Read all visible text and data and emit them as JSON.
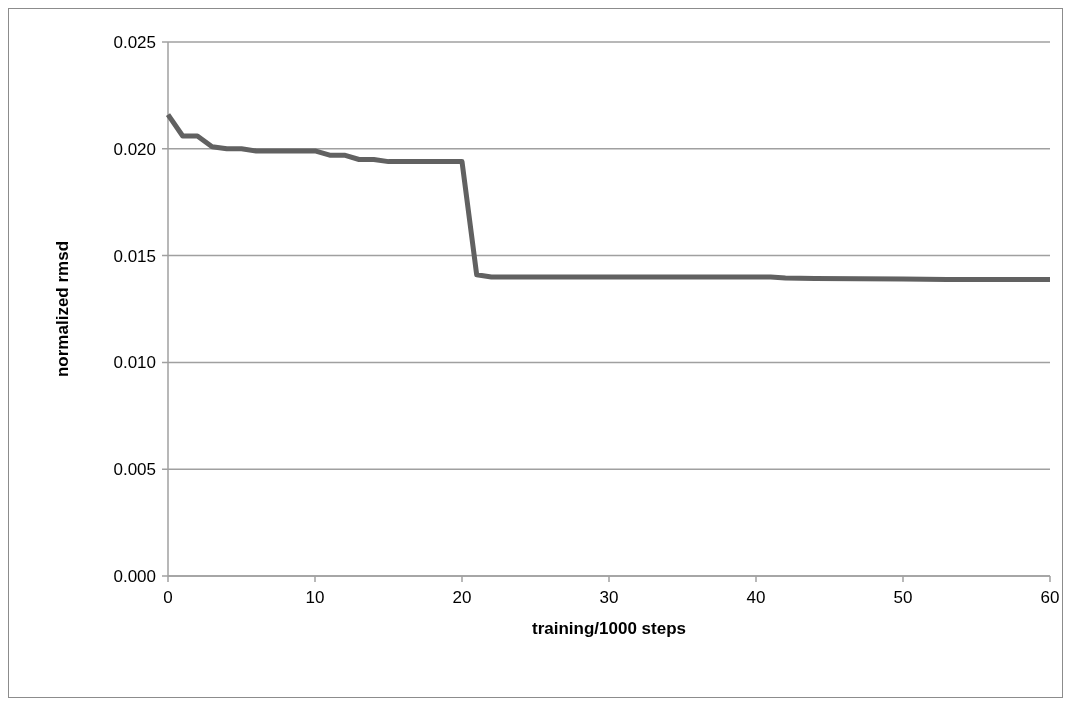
{
  "chart_data": {
    "type": "line",
    "xlabel": "training/1000 steps",
    "ylabel": "normalized rmsd",
    "x": [
      0,
      1,
      2,
      3,
      4,
      5,
      6,
      10,
      11,
      12,
      13,
      14,
      15,
      20,
      21,
      22,
      41,
      42,
      44,
      47,
      50,
      53,
      60
    ],
    "series": [
      {
        "color": "#616161",
        "values": [
          0.0216,
          0.0206,
          0.0206,
          0.0201,
          0.02,
          0.02,
          0.0199,
          0.0199,
          0.0197,
          0.0197,
          0.0195,
          0.0195,
          0.0194,
          0.0194,
          0.0141,
          0.014,
          0.014,
          0.01395,
          0.01393,
          0.01392,
          0.0139,
          0.01388,
          0.01388
        ]
      }
    ],
    "xlim": [
      0,
      60
    ],
    "xticks": [
      0,
      10,
      20,
      30,
      40,
      50,
      60
    ],
    "ylim": [
      0,
      0.025
    ],
    "yticks": [
      {
        "value": 0,
        "label": "0.000"
      },
      {
        "value": 0.005,
        "label": "0.005"
      },
      {
        "value": 0.01,
        "label": "0.010"
      },
      {
        "value": 0.015,
        "label": "0.015"
      },
      {
        "value": 0.02,
        "label": "0.020"
      },
      {
        "value": 0.025,
        "label": "0.025"
      }
    ],
    "grid": "y",
    "marker": "none",
    "line_style": "solid"
  }
}
